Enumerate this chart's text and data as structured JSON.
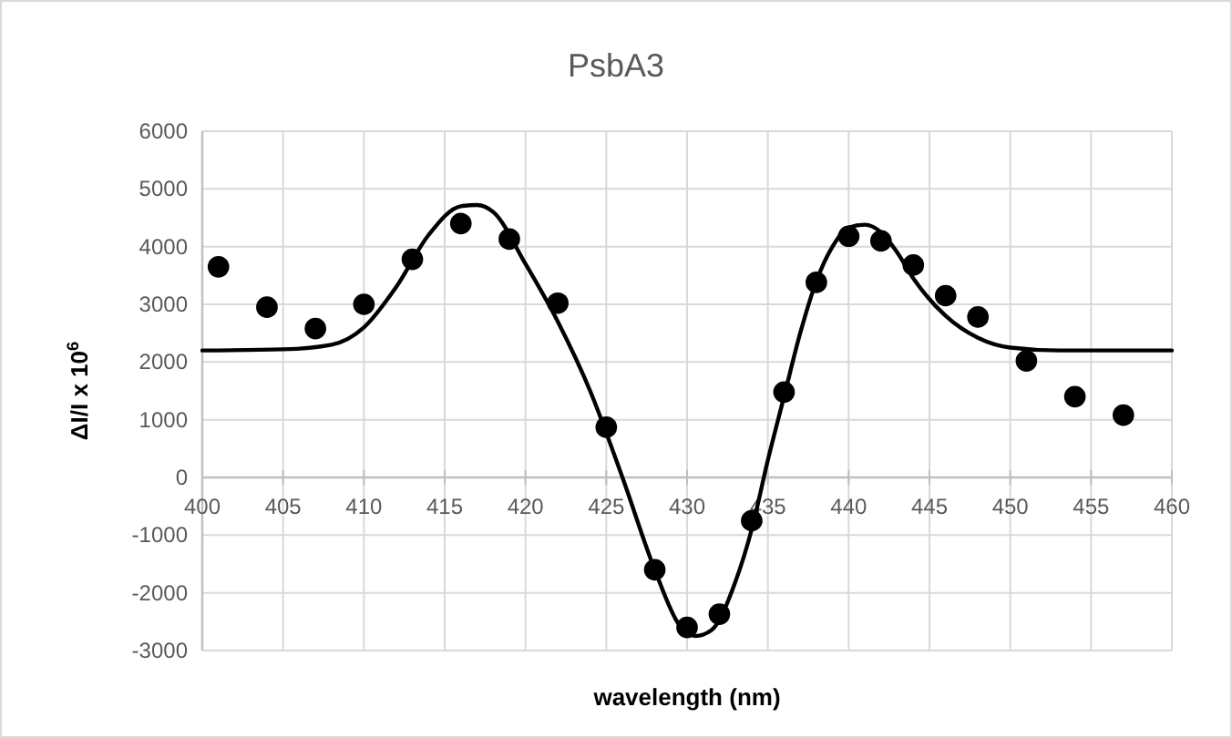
{
  "chart_data": {
    "type": "scatter",
    "title": "PsbA3",
    "xlabel": "wavelength (nm)",
    "ylabel": "ΔI/I x 10$^{6}$",
    "xlim": [
      400,
      460
    ],
    "xticks": [
      400,
      405,
      410,
      415,
      420,
      425,
      430,
      435,
      440,
      445,
      450,
      455,
      460
    ],
    "ylim": [
      -3000,
      6000
    ],
    "yticks": [
      -3000,
      -2000,
      -1000,
      0,
      1000,
      2000,
      3000,
      4000,
      5000,
      6000
    ],
    "grid": true,
    "series": [
      {
        "color": "#000000",
        "marker": "circle",
        "x": [
          401,
          404,
          407,
          410,
          413,
          416,
          419,
          422,
          425,
          428,
          430,
          432,
          434,
          436,
          438,
          440,
          442,
          444,
          446,
          448,
          451,
          454,
          457
        ],
        "values": [
          3650,
          2950,
          2580,
          3000,
          3780,
          4400,
          4130,
          3020,
          870,
          -1600,
          -2600,
          -2370,
          -750,
          1480,
          3380,
          4180,
          4100,
          3680,
          3150,
          2780,
          2020,
          1400,
          1080
        ]
      },
      {
        "type": "line",
        "color": "#000000",
        "marker": "none",
        "line_style": "solid",
        "x": [
          400,
          405,
          408,
          410,
          412,
          414,
          416,
          417,
          418,
          420,
          422,
          424,
          426,
          428,
          429.5,
          430.5,
          431.5,
          433,
          434,
          435,
          436,
          437,
          438,
          439,
          440,
          441,
          442,
          443,
          444,
          446,
          448,
          450,
          453,
          460
        ],
        "values": [
          2200,
          2220,
          2300,
          2600,
          3300,
          4200,
          4700,
          4720,
          4600,
          3700,
          2700,
          1500,
          0,
          -1600,
          -2550,
          -2750,
          -2650,
          -1800,
          -900,
          300,
          1400,
          2500,
          3400,
          4000,
          4330,
          4380,
          4250,
          3900,
          3450,
          2800,
          2420,
          2250,
          2200,
          2200
        ]
      }
    ]
  }
}
